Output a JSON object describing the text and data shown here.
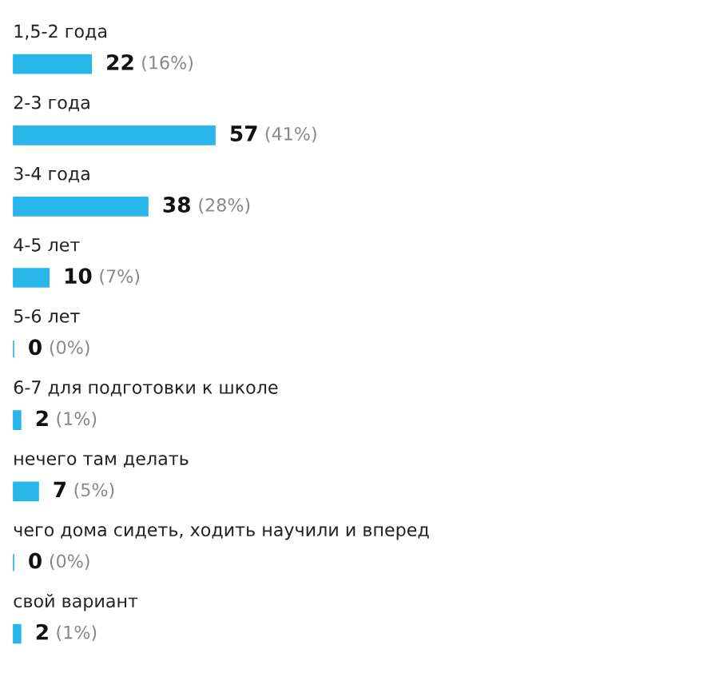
{
  "chart_data": {
    "type": "bar",
    "orientation": "horizontal",
    "categories": [
      "1,5-2 года",
      "2-3 года",
      "3-4 года",
      "4-5 лет",
      "5-6 лет",
      "6-7 для подготовки к школе",
      "нечего там делать",
      "чего дома сидеть, ходить научили и вперед",
      "свой вариант"
    ],
    "values": [
      22,
      57,
      38,
      10,
      0,
      2,
      7,
      0,
      2
    ],
    "color": "#29b6ea",
    "data_labels": true,
    "annotations": [
      {
        "text": "(16%)",
        "x": 22,
        "y": "1,5-2 года"
      },
      {
        "text": "(41%)",
        "x": 57,
        "y": "2-3 года"
      },
      {
        "text": "(28%)",
        "x": 38,
        "y": "3-4 года"
      },
      {
        "text": "(7%)",
        "x": 10,
        "y": "4-5 лет"
      },
      {
        "text": "(0%)",
        "x": 0,
        "y": "5-6 лет"
      },
      {
        "text": "(1%)",
        "x": 2,
        "y": "6-7 для подготовки к школе"
      },
      {
        "text": "(5%)",
        "x": 7,
        "y": "нечего там делать"
      },
      {
        "text": "(0%)",
        "x": 0,
        "y": "чего дома сидеть, ходить научили и вперед"
      },
      {
        "text": "(1%)",
        "x": 2,
        "y": "свой вариант"
      }
    ]
  }
}
